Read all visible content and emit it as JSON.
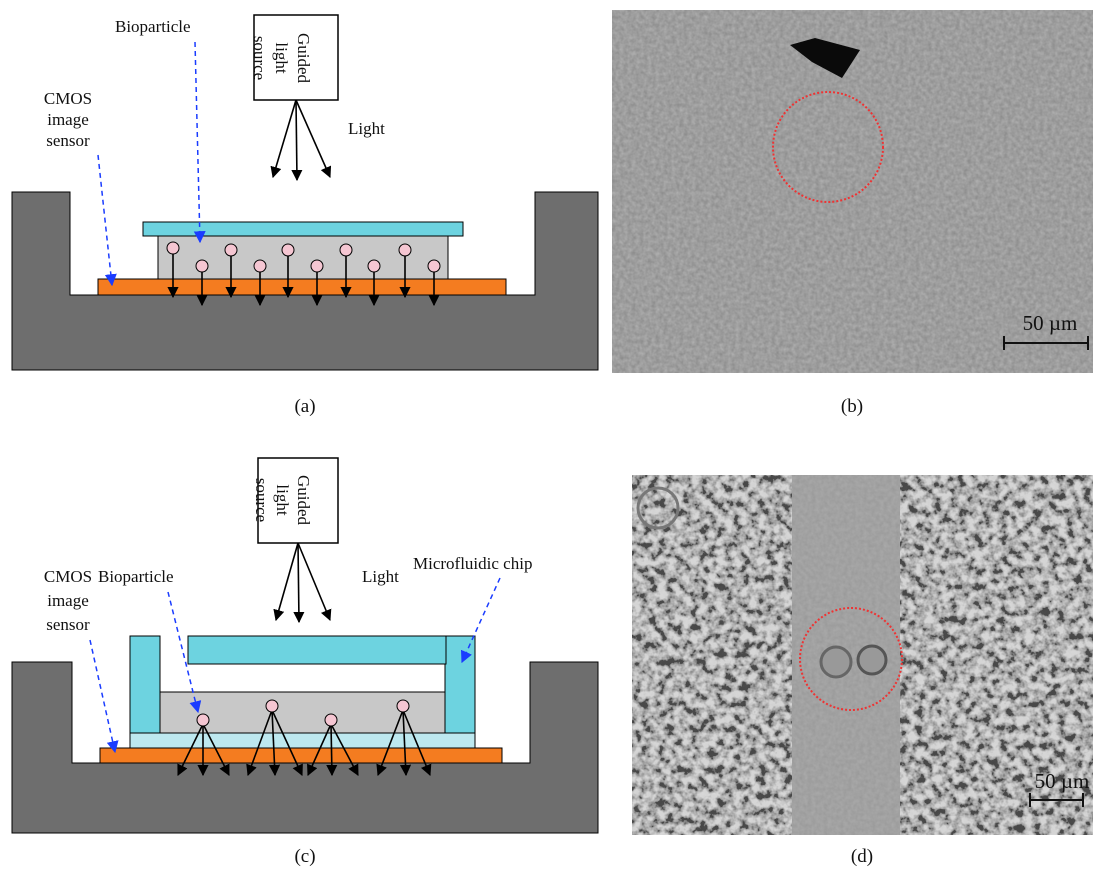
{
  "panels": [
    {
      "caption": "(a)",
      "bioparticle": "Bioparticle",
      "sensor": [
        "CMOS",
        "image",
        "sensor"
      ],
      "source": [
        "Guided",
        "light",
        "source"
      ],
      "light": "Light"
    },
    {
      "caption": "(b)",
      "scale_bar": "50 µm"
    },
    {
      "caption": "(c)",
      "bioparticle": "Bioparticle",
      "sensor": [
        "CMOS",
        "image",
        "sensor"
      ],
      "source": [
        "Guided",
        "light",
        "source"
      ],
      "light": "Light",
      "chip": "Microfluidic chip"
    },
    {
      "caption": "(d)",
      "scale_bar": "50 µm"
    }
  ]
}
